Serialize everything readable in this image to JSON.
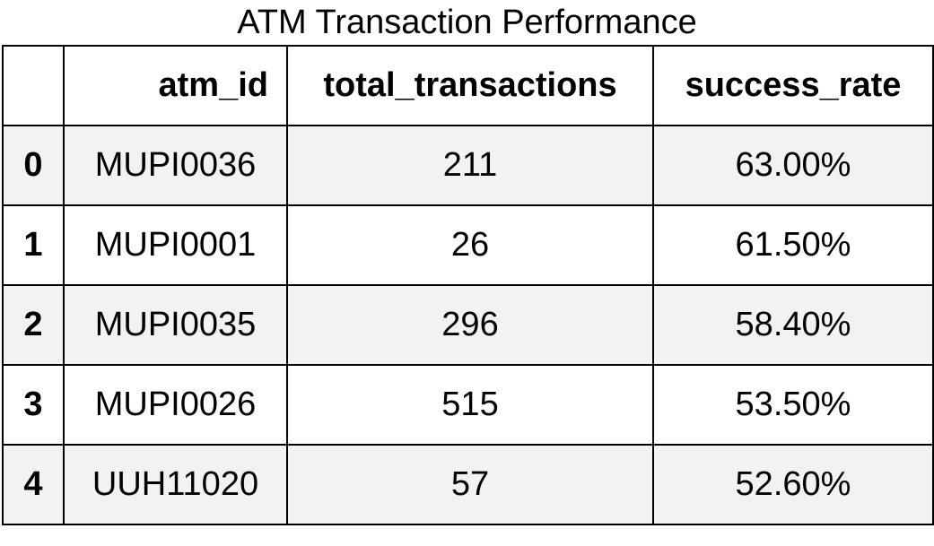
{
  "chart_data": {
    "type": "table",
    "title": "ATM Transaction Performance",
    "columns": [
      "",
      "atm_id",
      "total_transactions",
      "success_rate"
    ],
    "rows": [
      {
        "index": "0",
        "atm_id": "MUPI0036",
        "total_transactions": "211",
        "success_rate": "63.00%"
      },
      {
        "index": "1",
        "atm_id": "MUPI0001",
        "total_transactions": "26",
        "success_rate": "61.50%"
      },
      {
        "index": "2",
        "atm_id": "MUPI0035",
        "total_transactions": "296",
        "success_rate": "58.40%"
      },
      {
        "index": "3",
        "atm_id": "MUPI0026",
        "total_transactions": "515",
        "success_rate": "53.50%"
      },
      {
        "index": "4",
        "atm_id": "UUH11020",
        "total_transactions": "57",
        "success_rate": "52.60%"
      }
    ],
    "colors": {
      "header_bg": "#ffffff",
      "stripe_bg": "#f2f2f2",
      "row_bg": "#ffffff",
      "border": "#000000"
    }
  }
}
